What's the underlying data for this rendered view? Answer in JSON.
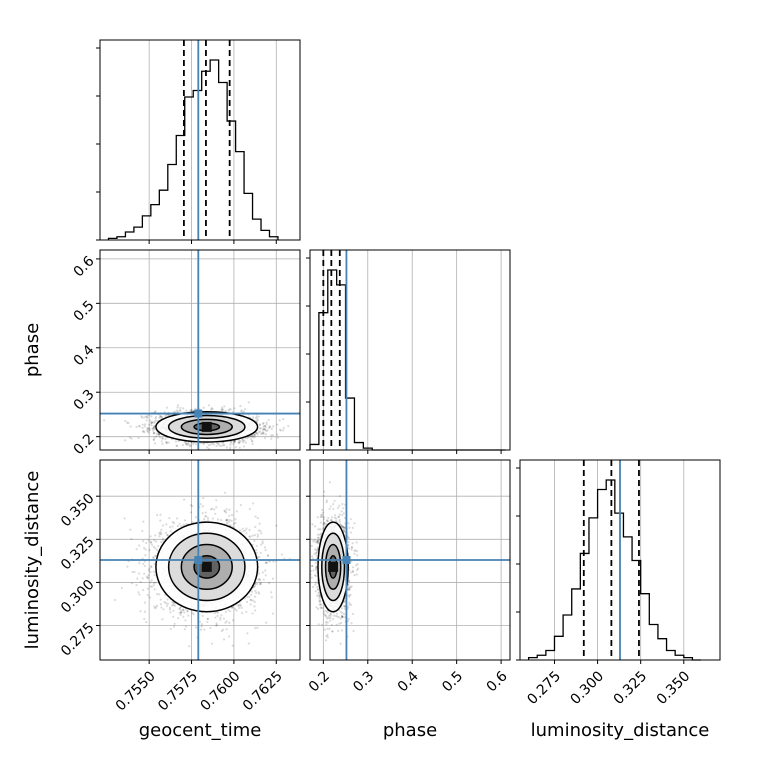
{
  "chart_data": {
    "type": "corner",
    "parameters": [
      "geocent_time",
      "phase",
      "luminosity_distance"
    ],
    "axis_labels": {
      "bottom": [
        "geocent_time",
        "phase",
        "luminosity_distance"
      ],
      "left": [
        "phase",
        "luminosity_distance"
      ]
    },
    "ranges": {
      "geocent_time": [
        0.7521,
        0.7639
      ],
      "phase": [
        0.17,
        0.62
      ],
      "luminosity_distance": [
        0.255,
        0.371
      ]
    },
    "ticks": {
      "geocent_time": {
        "values": [
          0.755,
          0.7575,
          0.76,
          0.7625
        ],
        "labels": [
          "0.7550",
          "0.7575",
          "0.7600",
          "0.7625"
        ]
      },
      "phase": {
        "values": [
          0.2,
          0.3,
          0.4,
          0.5,
          0.6
        ],
        "labels": [
          "0.2",
          "0.3",
          "0.4",
          "0.5",
          "0.6"
        ]
      },
      "luminosity_distance": {
        "values": [
          0.275,
          0.3,
          0.325,
          0.35
        ],
        "labels": [
          "0.275",
          "0.300",
          "0.325",
          "0.350"
        ]
      }
    },
    "truths": {
      "geocent_time": 0.7579,
      "phase": 0.252,
      "luminosity_distance": 0.313
    },
    "truth_color": "#4682b4",
    "quantiles": {
      "geocent_time": [
        0.75705,
        0.75835,
        0.75975
      ],
      "phase": [
        0.2,
        0.218,
        0.237
      ],
      "luminosity_distance": [
        0.292,
        0.308,
        0.324
      ]
    },
    "histograms": {
      "geocent_time": {
        "edges": [
          0.7526,
          0.7531,
          0.7536,
          0.7541,
          0.7546,
          0.7551,
          0.7556,
          0.7561,
          0.7566,
          0.7571,
          0.7576,
          0.7581,
          0.7586,
          0.7591,
          0.7596,
          0.7601,
          0.7606,
          0.7611,
          0.7616,
          0.7621,
          0.7626
        ],
        "counts": [
          1,
          2,
          5,
          8,
          15,
          22,
          31,
          47,
          65,
          89,
          93,
          105,
          112,
          98,
          74,
          55,
          29,
          13,
          6,
          2
        ]
      },
      "phase": {
        "edges": [
          0.17,
          0.19,
          0.21,
          0.23,
          0.25,
          0.27,
          0.29,
          0.31,
          0.33,
          0.35,
          0.37,
          0.39,
          0.41,
          0.43,
          0.45,
          0.47,
          0.49,
          0.51,
          0.53,
          0.55,
          0.57,
          0.59,
          0.61
        ],
        "counts": [
          3,
          74,
          97,
          89,
          28,
          4,
          1,
          0,
          0,
          0,
          0,
          0,
          0,
          0,
          0,
          0,
          0,
          0,
          0,
          0,
          0,
          0
        ]
      },
      "luminosity_distance": {
        "edges": [
          0.26,
          0.265,
          0.27,
          0.275,
          0.28,
          0.285,
          0.29,
          0.295,
          0.3,
          0.305,
          0.31,
          0.315,
          0.32,
          0.325,
          0.33,
          0.335,
          0.34,
          0.345,
          0.35,
          0.355,
          0.36
        ],
        "counts": [
          1,
          2,
          4,
          10,
          19,
          30,
          45,
          60,
          72,
          76,
          62,
          52,
          42,
          28,
          15,
          9,
          4,
          2,
          1,
          0
        ]
      }
    },
    "samples_2d": {
      "phase_vs_geocent_time": {
        "mean": [
          0.7584,
          0.222
        ],
        "std": [
          0.0015,
          0.017
        ],
        "corr": -0.1,
        "n": 2600
      },
      "luminosity_distance_vs_geocent_time": {
        "mean": [
          0.7584,
          0.309
        ],
        "std": [
          0.0015,
          0.013
        ],
        "corr": 0.0,
        "n": 2600
      },
      "luminosity_distance_vs_phase": {
        "mean": [
          0.222,
          0.309
        ],
        "std": [
          0.017,
          0.013
        ],
        "corr": 0.0,
        "n": 2600
      }
    },
    "contour_levels_sigma": [
      0.5,
      1.0,
      1.5,
      2.0
    ]
  }
}
